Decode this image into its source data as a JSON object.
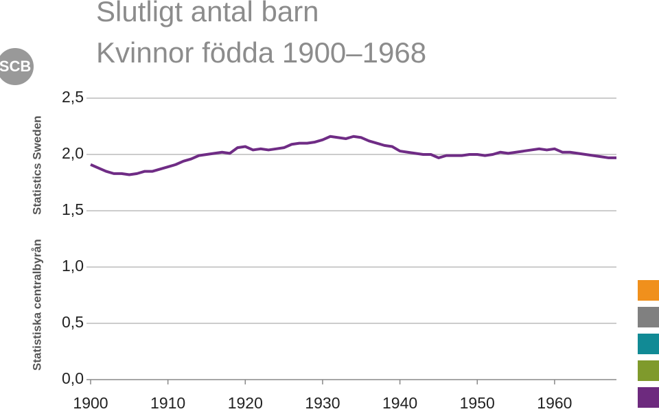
{
  "org": {
    "name_sv": "Statistiska centralbyrån",
    "name_en": "Statistics Sweden",
    "logo": "SCB"
  },
  "chart_data": {
    "type": "line",
    "title": "Slutligt antal barn",
    "subtitle": "Kvinnor födda 1900–1968",
    "x": [
      1900,
      1901,
      1902,
      1903,
      1904,
      1905,
      1906,
      1907,
      1908,
      1909,
      1910,
      1911,
      1912,
      1913,
      1914,
      1915,
      1916,
      1917,
      1918,
      1919,
      1920,
      1921,
      1922,
      1923,
      1924,
      1925,
      1926,
      1927,
      1928,
      1929,
      1930,
      1931,
      1932,
      1933,
      1934,
      1935,
      1936,
      1937,
      1938,
      1939,
      1940,
      1941,
      1942,
      1943,
      1944,
      1945,
      1946,
      1947,
      1948,
      1949,
      1950,
      1951,
      1952,
      1953,
      1954,
      1955,
      1956,
      1957,
      1958,
      1959,
      1960,
      1961,
      1962,
      1963,
      1964,
      1965,
      1966,
      1967,
      1968
    ],
    "series": [
      {
        "color": "#6f2c85",
        "values": [
          1.91,
          1.88,
          1.85,
          1.83,
          1.83,
          1.82,
          1.83,
          1.85,
          1.85,
          1.87,
          1.89,
          1.91,
          1.94,
          1.96,
          1.99,
          2.0,
          2.01,
          2.02,
          2.01,
          2.06,
          2.07,
          2.04,
          2.05,
          2.04,
          2.05,
          2.06,
          2.09,
          2.1,
          2.1,
          2.11,
          2.13,
          2.16,
          2.15,
          2.14,
          2.16,
          2.15,
          2.12,
          2.1,
          2.08,
          2.07,
          2.03,
          2.02,
          2.01,
          2.0,
          2.0,
          1.97,
          1.99,
          1.99,
          1.99,
          2.0,
          2.0,
          1.99,
          2.0,
          2.02,
          2.01,
          2.02,
          2.03,
          2.04,
          2.05,
          2.04,
          2.05,
          2.02,
          2.02,
          2.01,
          2.0,
          1.99,
          1.98,
          1.97,
          1.97
        ]
      }
    ],
    "xlim": [
      1900,
      1968
    ],
    "xticks": [
      1900,
      1910,
      1920,
      1930,
      1940,
      1950,
      1960
    ],
    "ylim": [
      0,
      2.5
    ],
    "yticks": [
      {
        "value": 0,
        "label": "0,0"
      },
      {
        "value": 0.5,
        "label": "0,5"
      },
      {
        "value": 1,
        "label": "1,0"
      },
      {
        "value": 1.5,
        "label": "1,5"
      },
      {
        "value": 2,
        "label": "2,0"
      },
      {
        "value": 2.5,
        "label": "2,5"
      }
    ],
    "grid": true
  }
}
